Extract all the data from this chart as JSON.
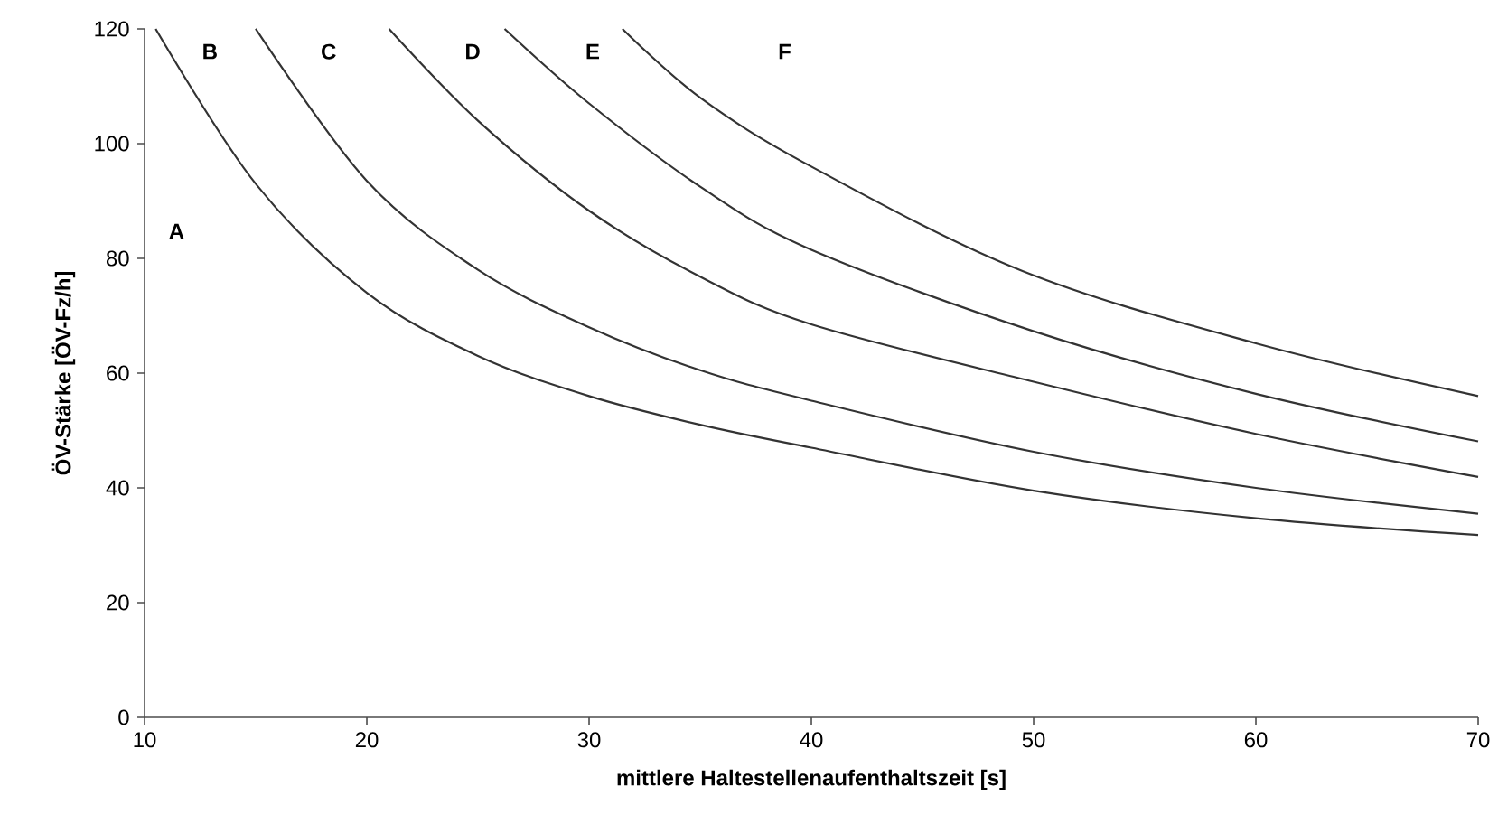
{
  "chart_data": {
    "type": "line",
    "xlabel": "mittlere Haltestellenaufenthaltszeit [s]",
    "ylabel": "ÖV-Stärke [ÖV-Fz/h]",
    "xlim": [
      10,
      70
    ],
    "ylim": [
      0,
      120
    ],
    "xticks": [
      10,
      20,
      30,
      40,
      50,
      60,
      70
    ],
    "yticks": [
      0,
      20,
      40,
      60,
      80,
      100,
      120
    ],
    "grid": false,
    "marker": "none",
    "line_style": "solid",
    "series": [
      {
        "color": "#333333",
        "x": [
          10.5,
          15,
          20,
          25,
          30,
          35,
          40,
          50,
          60,
          70
        ],
        "values": [
          120,
          93,
          74,
          63,
          56,
          51,
          47,
          39.5,
          34.7,
          31.8
        ]
      },
      {
        "color": "#333333",
        "x": [
          15,
          20,
          25,
          30,
          35,
          40,
          50,
          60,
          70
        ],
        "values": [
          120,
          93.5,
          78,
          68,
          60.5,
          55.2,
          46.3,
          40,
          35.5
        ]
      },
      {
        "color": "#333333",
        "x": [
          21,
          25,
          30,
          35,
          40,
          50,
          60,
          70
        ],
        "values": [
          120,
          104,
          88.3,
          76.8,
          68.5,
          58.5,
          49.4,
          41.9
        ]
      },
      {
        "color": "#333333",
        "x": [
          26.2,
          30,
          35,
          40,
          50,
          60,
          70
        ],
        "values": [
          120,
          107,
          92.5,
          81.5,
          67.3,
          56.4,
          48.1
        ]
      },
      {
        "color": "#333333",
        "x": [
          31.5,
          35,
          40,
          49.5,
          60,
          70
        ],
        "values": [
          120,
          108,
          96,
          77.8,
          65.2,
          56
        ]
      }
    ],
    "annotations": [
      "A",
      "B",
      "C",
      "D",
      "E",
      "F"
    ]
  }
}
